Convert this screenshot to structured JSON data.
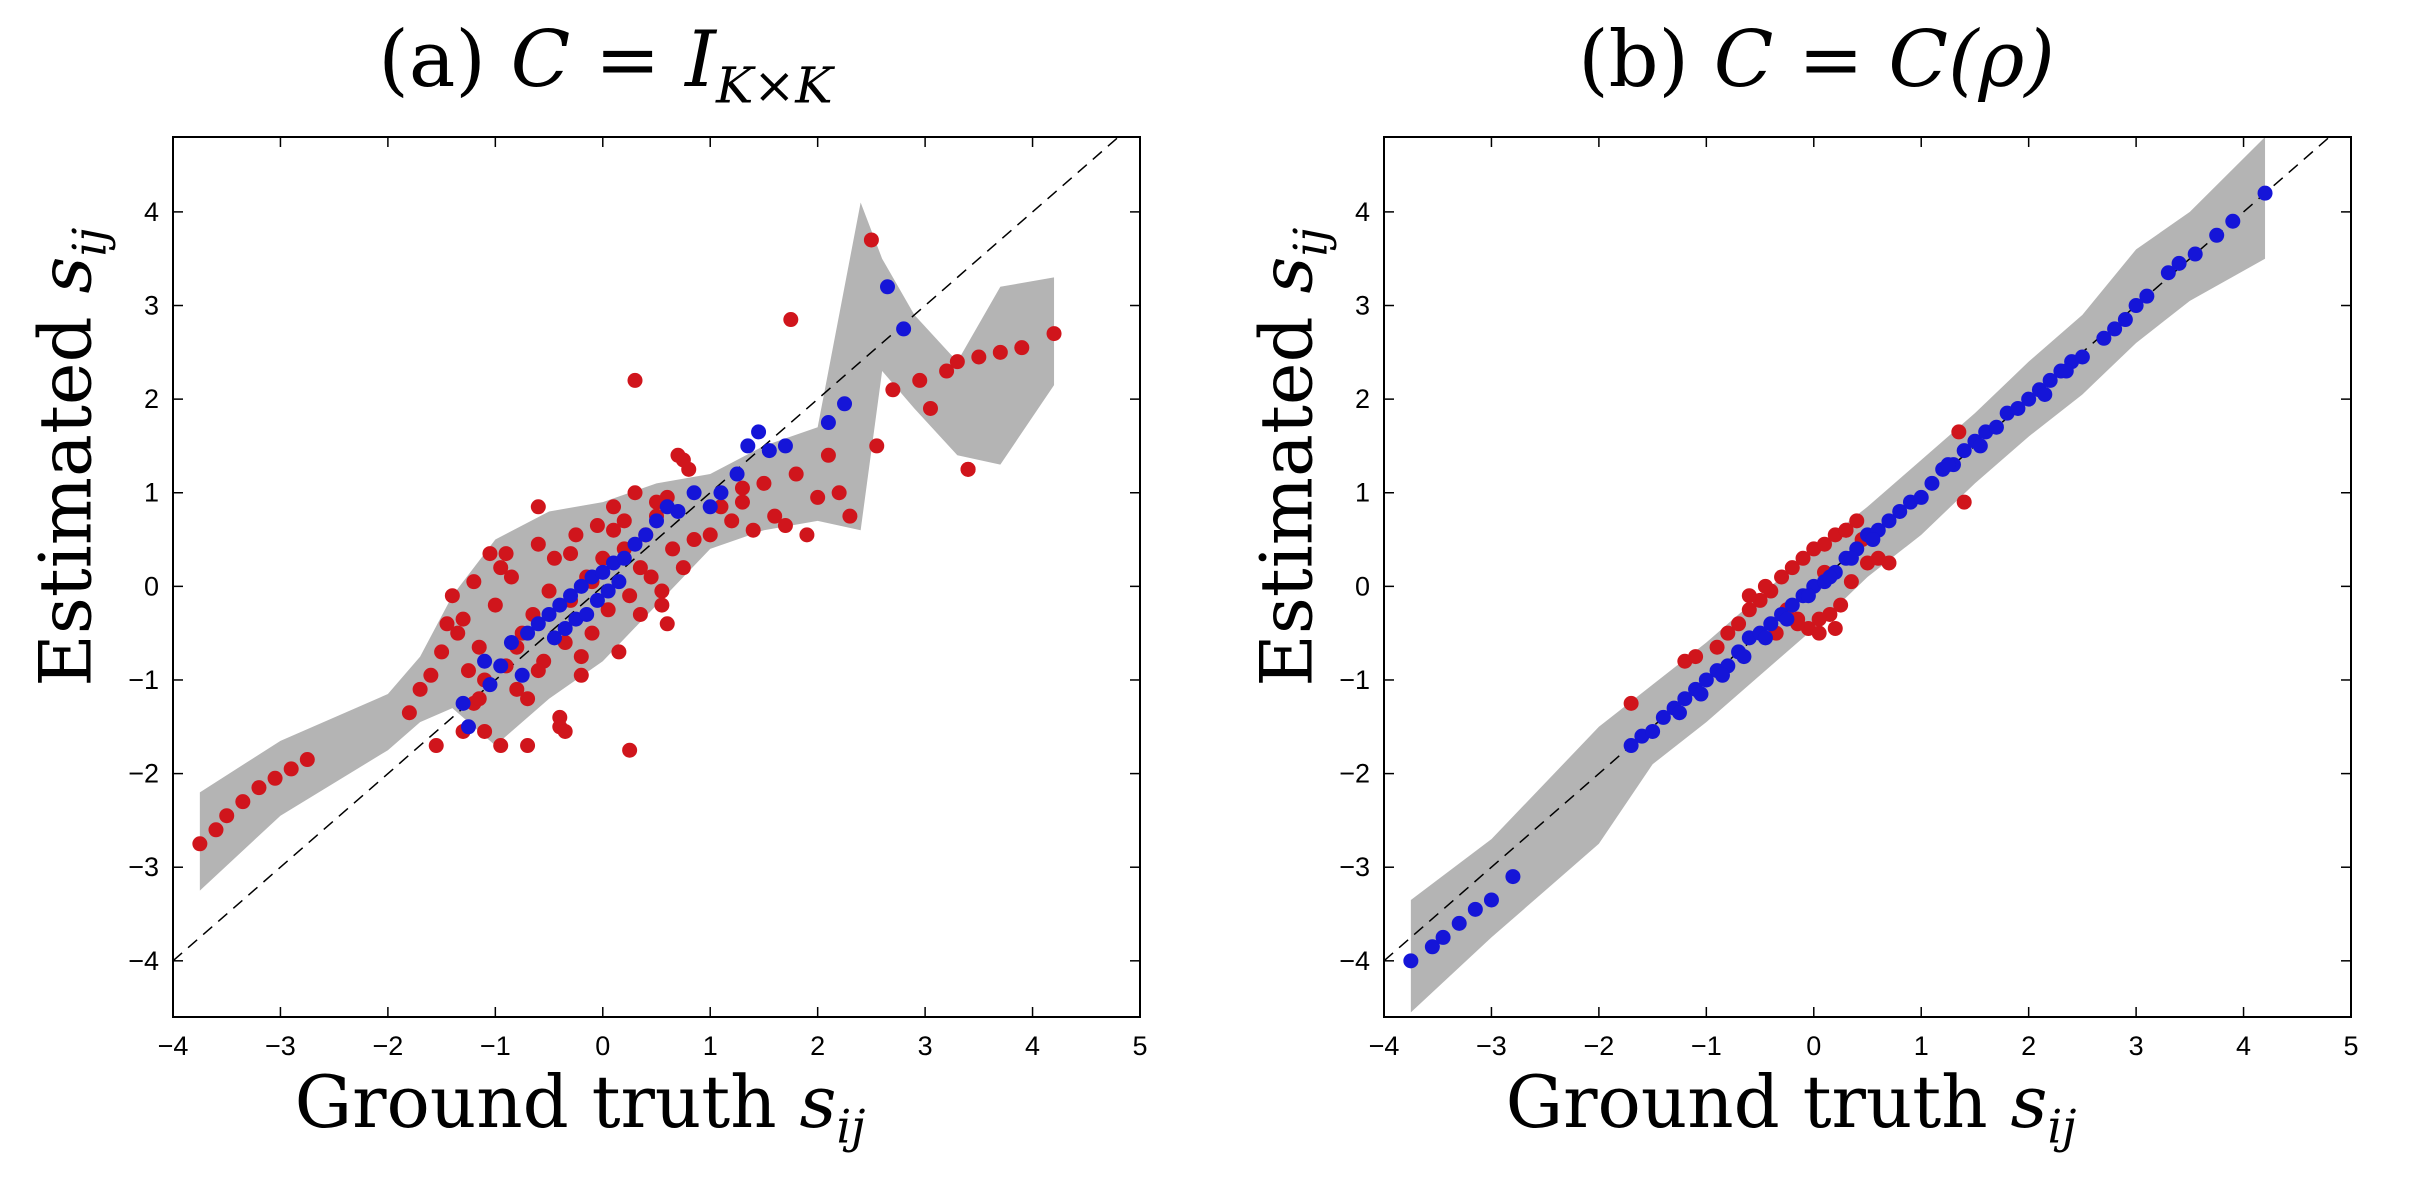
{
  "chart_data": [
    {
      "type": "scatter",
      "title_prefix": "(a) ",
      "title_math": "C = I",
      "title_sub": "K×K",
      "xlabel": "Ground truth ",
      "xlabel_math": "s",
      "xlabel_sub": "ij",
      "ylabel": "Estimated ",
      "ylabel_math": "s",
      "ylabel_sub": "ij",
      "xlim": [
        -4,
        5
      ],
      "ylim": [
        -4.6,
        4.8
      ],
      "xticks": [
        -4,
        -3,
        -2,
        -1,
        0,
        1,
        2,
        3,
        4,
        5
      ],
      "yticks": [
        -4,
        -3,
        -2,
        -1,
        0,
        1,
        2,
        3,
        4
      ],
      "reference_line": "y = x (dashed)",
      "colors": {
        "red": "#d0151c",
        "blue": "#1515d8",
        "band": "#b4b4b4"
      },
      "band": {
        "x": [
          -3.75,
          -3.0,
          -2.0,
          -1.7,
          -1.4,
          -1.0,
          -0.5,
          0.0,
          0.5,
          1.0,
          1.5,
          2.0,
          2.4,
          2.6,
          2.9,
          3.3,
          3.7,
          4.2
        ],
        "lower": [
          -3.25,
          -2.45,
          -1.75,
          -1.45,
          -1.3,
          -1.7,
          -1.2,
          -0.8,
          -0.2,
          0.4,
          0.6,
          0.7,
          0.6,
          2.3,
          1.9,
          1.4,
          1.3,
          2.15
        ],
        "upper": [
          -2.2,
          -1.65,
          -1.15,
          -0.75,
          -0.1,
          0.5,
          0.8,
          0.9,
          1.1,
          1.2,
          1.5,
          1.7,
          4.1,
          3.5,
          2.9,
          2.4,
          3.2,
          3.3
        ]
      },
      "series": [
        {
          "name": "red",
          "color": "#d0151c",
          "x": [
            -3.75,
            -3.6,
            -3.5,
            -3.35,
            -3.2,
            -3.05,
            -2.9,
            -2.75,
            -1.8,
            -1.7,
            -1.6,
            -1.5,
            -1.45,
            -1.4,
            -1.35,
            -1.3,
            -1.25,
            -1.2,
            -1.15,
            -1.1,
            -1.05,
            -1.0,
            -0.95,
            -0.9,
            -0.85,
            -0.8,
            -0.75,
            -0.7,
            -0.65,
            -0.6,
            -0.55,
            -0.5,
            -0.45,
            -0.4,
            -0.35,
            -0.3,
            -0.25,
            -0.2,
            -0.15,
            -0.1,
            -0.05,
            0.0,
            0.05,
            0.1,
            0.15,
            0.2,
            0.25,
            0.3,
            0.35,
            0.4,
            0.45,
            0.5,
            0.55,
            0.6,
            0.65,
            0.7,
            0.75,
            0.8,
            1.0,
            1.1,
            1.2,
            1.3,
            1.4,
            1.5,
            1.6,
            1.7,
            1.8,
            1.9,
            2.0,
            2.1,
            2.2,
            2.3,
            2.5,
            2.7,
            2.95,
            3.2,
            3.3,
            3.4,
            3.5,
            3.7,
            3.9,
            4.2,
            -1.55,
            -1.3,
            -1.2,
            -1.1,
            -0.95,
            -0.8,
            -0.7,
            -0.6,
            -0.4,
            -0.3,
            -0.2,
            -0.1,
            0.2,
            0.25,
            0.35,
            0.5,
            0.6,
            0.75,
            0.85,
            1.3,
            1.75,
            2.55,
            3.05,
            3.4,
            -0.35,
            0.1,
            0.3,
            -1.15,
            -0.9,
            -0.6,
            0.55
          ],
          "y": [
            -2.75,
            -2.6,
            -2.45,
            -2.3,
            -2.15,
            -2.05,
            -1.95,
            -1.85,
            -1.35,
            -1.1,
            -0.95,
            -0.7,
            -0.4,
            -0.1,
            -0.5,
            -0.35,
            -0.9,
            -1.25,
            -0.65,
            -1.55,
            0.35,
            -0.2,
            -1.7,
            -0.85,
            0.1,
            -1.1,
            -0.5,
            -1.7,
            -0.3,
            0.45,
            -0.8,
            -0.05,
            0.3,
            -1.4,
            -0.6,
            -0.15,
            0.55,
            -0.95,
            0.1,
            -0.5,
            0.65,
            0.3,
            -0.25,
            0.85,
            -0.7,
            0.4,
            -0.1,
            1.0,
            -0.3,
            0.55,
            0.1,
            0.75,
            -0.05,
            0.95,
            0.4,
            1.4,
            0.2,
            1.25,
            0.55,
            0.85,
            0.7,
            0.9,
            0.6,
            1.1,
            0.75,
            0.65,
            1.2,
            0.55,
            0.95,
            1.4,
            1.0,
            0.75,
            3.7,
            2.1,
            2.2,
            2.3,
            2.4,
            1.25,
            2.45,
            2.5,
            2.55,
            2.7,
            -1.7,
            -1.55,
            0.05,
            -1.0,
            0.2,
            -0.65,
            -1.2,
            0.85,
            -1.5,
            0.35,
            -0.75,
            0.05,
            0.7,
            -1.75,
            0.2,
            0.9,
            -0.4,
            1.35,
            0.5,
            1.05,
            2.85,
            1.5,
            1.9,
            1.25,
            -1.55,
            0.6,
            2.2,
            -1.2,
            0.35,
            -0.9,
            -0.2
          ]
        },
        {
          "name": "blue",
          "color": "#1515d8",
          "x": [
            -1.3,
            -1.25,
            -1.1,
            -1.05,
            -0.95,
            -0.85,
            -0.75,
            -0.7,
            -0.6,
            -0.5,
            -0.45,
            -0.4,
            -0.35,
            -0.3,
            -0.25,
            -0.2,
            -0.15,
            -0.1,
            -0.05,
            0.0,
            0.05,
            0.1,
            0.15,
            0.2,
            0.3,
            0.4,
            0.5,
            0.6,
            0.7,
            0.85,
            1.0,
            1.1,
            1.25,
            1.35,
            1.45,
            1.55,
            1.7,
            2.1,
            2.25,
            2.65,
            2.8
          ],
          "y": [
            -1.25,
            -1.5,
            -0.8,
            -1.05,
            -0.85,
            -0.6,
            -0.95,
            -0.5,
            -0.4,
            -0.3,
            -0.55,
            -0.2,
            -0.45,
            -0.1,
            -0.35,
            0.0,
            -0.3,
            0.1,
            -0.15,
            0.15,
            -0.05,
            0.25,
            0.05,
            0.3,
            0.45,
            0.55,
            0.7,
            0.85,
            0.8,
            1.0,
            0.85,
            1.0,
            1.2,
            1.5,
            1.65,
            1.45,
            1.5,
            1.75,
            1.95,
            3.2,
            2.75
          ]
        }
      ]
    },
    {
      "type": "scatter",
      "title_prefix": "(b) ",
      "title_math": "C = C(ρ)",
      "title_sub": "",
      "xlabel": "Ground truth ",
      "xlabel_math": "s",
      "xlabel_sub": "ij",
      "ylabel": "Estimated ",
      "ylabel_math": "s",
      "ylabel_sub": "ij",
      "xlim": [
        -4,
        5
      ],
      "ylim": [
        -4.6,
        4.8
      ],
      "xticks": [
        -4,
        -3,
        -2,
        -1,
        0,
        1,
        2,
        3,
        4,
        5
      ],
      "yticks": [
        -4,
        -3,
        -2,
        -1,
        0,
        1,
        2,
        3,
        4
      ],
      "reference_line": "y = x (dashed)",
      "colors": {
        "red": "#d0151c",
        "blue": "#1515d8",
        "band": "#b4b4b4"
      },
      "band": {
        "x": [
          -3.75,
          -3.0,
          -2.0,
          -1.5,
          -1.0,
          -0.5,
          0.0,
          0.5,
          1.0,
          1.5,
          2.0,
          2.5,
          3.0,
          3.5,
          4.2
        ],
        "lower": [
          -4.55,
          -3.75,
          -2.75,
          -1.9,
          -1.45,
          -0.95,
          -0.45,
          0.1,
          0.55,
          1.1,
          1.6,
          2.05,
          2.6,
          3.05,
          3.5
        ],
        "upper": [
          -3.35,
          -2.7,
          -1.5,
          -1.05,
          -0.6,
          -0.1,
          0.4,
          0.85,
          1.35,
          1.85,
          2.4,
          2.9,
          3.6,
          4.0,
          4.8
        ]
      },
      "series": [
        {
          "name": "red",
          "color": "#d0151c",
          "x": [
            -1.7,
            -1.2,
            -1.1,
            -0.9,
            -0.8,
            -0.7,
            -0.6,
            -0.5,
            -0.4,
            -0.3,
            -0.25,
            -0.2,
            -0.15,
            -0.1,
            -0.05,
            0.0,
            0.05,
            0.1,
            0.15,
            0.2,
            0.25,
            0.3,
            0.35,
            0.4,
            0.5,
            0.6,
            0.7,
            1.35,
            1.4,
            -0.35,
            -0.15,
            0.05,
            0.2,
            0.3,
            -0.45,
            -0.6,
            0.1,
            0.45
          ],
          "y": [
            -1.25,
            -0.8,
            -0.75,
            -0.65,
            -0.5,
            -0.4,
            -0.25,
            -0.15,
            -0.05,
            0.1,
            -0.25,
            0.2,
            -0.35,
            0.3,
            -0.45,
            0.4,
            -0.5,
            0.45,
            -0.3,
            0.55,
            -0.2,
            0.6,
            0.05,
            0.7,
            0.25,
            0.3,
            0.25,
            1.65,
            0.9,
            -0.5,
            -0.4,
            -0.35,
            -0.45,
            0.6,
            0.0,
            -0.1,
            0.15,
            0.5
          ]
        },
        {
          "name": "blue",
          "color": "#1515d8",
          "x": [
            -3.75,
            -3.55,
            -3.45,
            -3.3,
            -3.15,
            -3.0,
            -2.8,
            -1.7,
            -1.6,
            -1.5,
            -1.4,
            -1.3,
            -1.2,
            -1.1,
            -1.0,
            -0.9,
            -0.8,
            -0.7,
            -0.6,
            -0.5,
            -0.4,
            -0.3,
            -0.2,
            -0.1,
            0.0,
            0.1,
            0.2,
            0.3,
            0.4,
            0.5,
            0.6,
            0.7,
            0.8,
            0.9,
            1.0,
            1.1,
            1.2,
            1.3,
            1.4,
            1.5,
            1.6,
            1.7,
            1.8,
            1.9,
            2.0,
            2.1,
            2.2,
            2.3,
            2.4,
            2.5,
            2.7,
            2.8,
            2.9,
            3.0,
            3.1,
            3.3,
            3.4,
            3.55,
            3.75,
            3.9,
            4.2,
            -1.25,
            -1.05,
            -0.85,
            -0.65,
            -0.45,
            -0.25,
            -0.05,
            0.15,
            0.35,
            0.55,
            1.25,
            1.55,
            2.15,
            2.35
          ],
          "y": [
            -4.0,
            -3.85,
            -3.75,
            -3.6,
            -3.45,
            -3.35,
            -3.1,
            -1.7,
            -1.6,
            -1.55,
            -1.4,
            -1.3,
            -1.2,
            -1.1,
            -1.0,
            -0.9,
            -0.85,
            -0.7,
            -0.55,
            -0.5,
            -0.4,
            -0.3,
            -0.2,
            -0.1,
            0.0,
            0.05,
            0.15,
            0.3,
            0.4,
            0.55,
            0.6,
            0.7,
            0.8,
            0.9,
            0.95,
            1.1,
            1.25,
            1.3,
            1.45,
            1.55,
            1.65,
            1.7,
            1.85,
            1.9,
            2.0,
            2.1,
            2.2,
            2.3,
            2.4,
            2.45,
            2.65,
            2.75,
            2.85,
            3.0,
            3.1,
            3.35,
            3.45,
            3.55,
            3.75,
            3.9,
            4.2,
            -1.35,
            -1.15,
            -0.95,
            -0.75,
            -0.55,
            -0.35,
            -0.1,
            0.1,
            0.3,
            0.5,
            1.3,
            1.5,
            2.05,
            2.3
          ]
        }
      ]
    }
  ]
}
